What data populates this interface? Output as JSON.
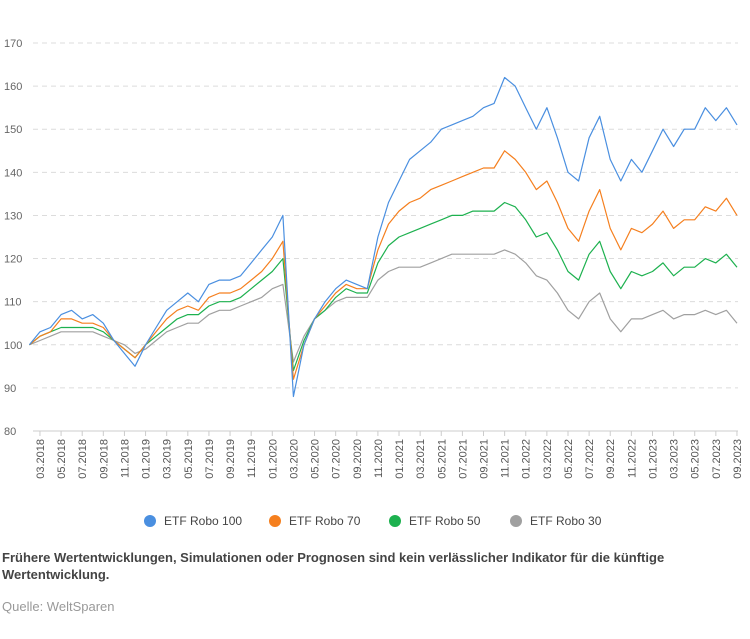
{
  "chart_data": {
    "type": "line",
    "title": "",
    "xlabel": "",
    "ylabel": "",
    "ylim": [
      80,
      170
    ],
    "yticks": [
      80,
      90,
      100,
      110,
      120,
      130,
      140,
      150,
      160,
      170
    ],
    "grid": true,
    "legend_position": "bottom",
    "x_start": "2018-02",
    "x_frequency": "monthly",
    "xtick_labels": [
      "03.2018",
      "05.2018",
      "07.2018",
      "09.2018",
      "11.2018",
      "01.2019",
      "03.2019",
      "05.2019",
      "07.2019",
      "09.2019",
      "11.2019",
      "01.2020",
      "03.2020",
      "05.2020",
      "07.2020",
      "09.2020",
      "11.2020",
      "01.2021",
      "03.2021",
      "05.2021",
      "07.2021",
      "09.2021",
      "11.2021",
      "01.2022",
      "03.2022",
      "05.2022",
      "07.2022",
      "09.2022",
      "11.2022",
      "01.2023",
      "03.2023",
      "05.2023",
      "07.2023",
      "09.2023"
    ],
    "series": [
      {
        "name": "ETF Robo 100",
        "color": "#4a8fe0",
        "values": [
          100,
          103,
          104,
          107,
          108,
          106,
          107,
          105,
          101,
          98,
          95,
          100,
          104,
          108,
          110,
          112,
          110,
          114,
          115,
          115,
          116,
          119,
          122,
          125,
          130,
          88,
          100,
          106,
          110,
          113,
          115,
          114,
          113,
          125,
          133,
          138,
          143,
          145,
          147,
          150,
          151,
          152,
          153,
          155,
          156,
          162,
          160,
          155,
          150,
          155,
          148,
          140,
          138,
          148,
          153,
          143,
          138,
          143,
          140,
          145,
          150,
          146,
          150,
          150,
          155,
          152,
          155,
          151
        ]
      },
      {
        "name": "ETF Robo 70",
        "color": "#f57f1e",
        "values": [
          100,
          102,
          103,
          106,
          106,
          105,
          105,
          104,
          101,
          99,
          97,
          100,
          103,
          106,
          108,
          109,
          108,
          111,
          112,
          112,
          113,
          115,
          117,
          120,
          124,
          92,
          100,
          106,
          109,
          112,
          114,
          113,
          113,
          122,
          128,
          131,
          133,
          134,
          136,
          137,
          138,
          139,
          140,
          141,
          141,
          145,
          143,
          140,
          136,
          138,
          133,
          127,
          124,
          131,
          136,
          127,
          122,
          127,
          126,
          128,
          131,
          127,
          129,
          129,
          132,
          131,
          134,
          130
        ]
      },
      {
        "name": "ETF Robo 50",
        "color": "#1db14f",
        "values": [
          100,
          102,
          103,
          104,
          104,
          104,
          104,
          103,
          101,
          99,
          97,
          100,
          102,
          104,
          106,
          107,
          107,
          109,
          110,
          110,
          111,
          113,
          115,
          117,
          120,
          94,
          101,
          106,
          108,
          111,
          113,
          112,
          112,
          119,
          123,
          125,
          126,
          127,
          128,
          129,
          130,
          130,
          131,
          131,
          131,
          133,
          132,
          129,
          125,
          126,
          122,
          117,
          115,
          121,
          124,
          117,
          113,
          117,
          116,
          117,
          119,
          116,
          118,
          118,
          120,
          119,
          121,
          118
        ]
      },
      {
        "name": "ETF Robo 30",
        "color": "#a0a0a0",
        "values": [
          100,
          101,
          102,
          103,
          103,
          103,
          103,
          102,
          101,
          100,
          98,
          99,
          101,
          103,
          104,
          105,
          105,
          107,
          108,
          108,
          109,
          110,
          111,
          113,
          114,
          96,
          102,
          106,
          108,
          110,
          111,
          111,
          111,
          115,
          117,
          118,
          118,
          118,
          119,
          120,
          121,
          121,
          121,
          121,
          121,
          122,
          121,
          119,
          116,
          115,
          112,
          108,
          106,
          110,
          112,
          106,
          103,
          106,
          106,
          107,
          108,
          106,
          107,
          107,
          108,
          107,
          108,
          105
        ]
      }
    ]
  },
  "note": "Frühere Wertentwicklungen, Simulationen oder Prognosen sind kein verlässlicher Indikator für die künftige Wertentwicklung.",
  "source": "Quelle: WeltSparen"
}
